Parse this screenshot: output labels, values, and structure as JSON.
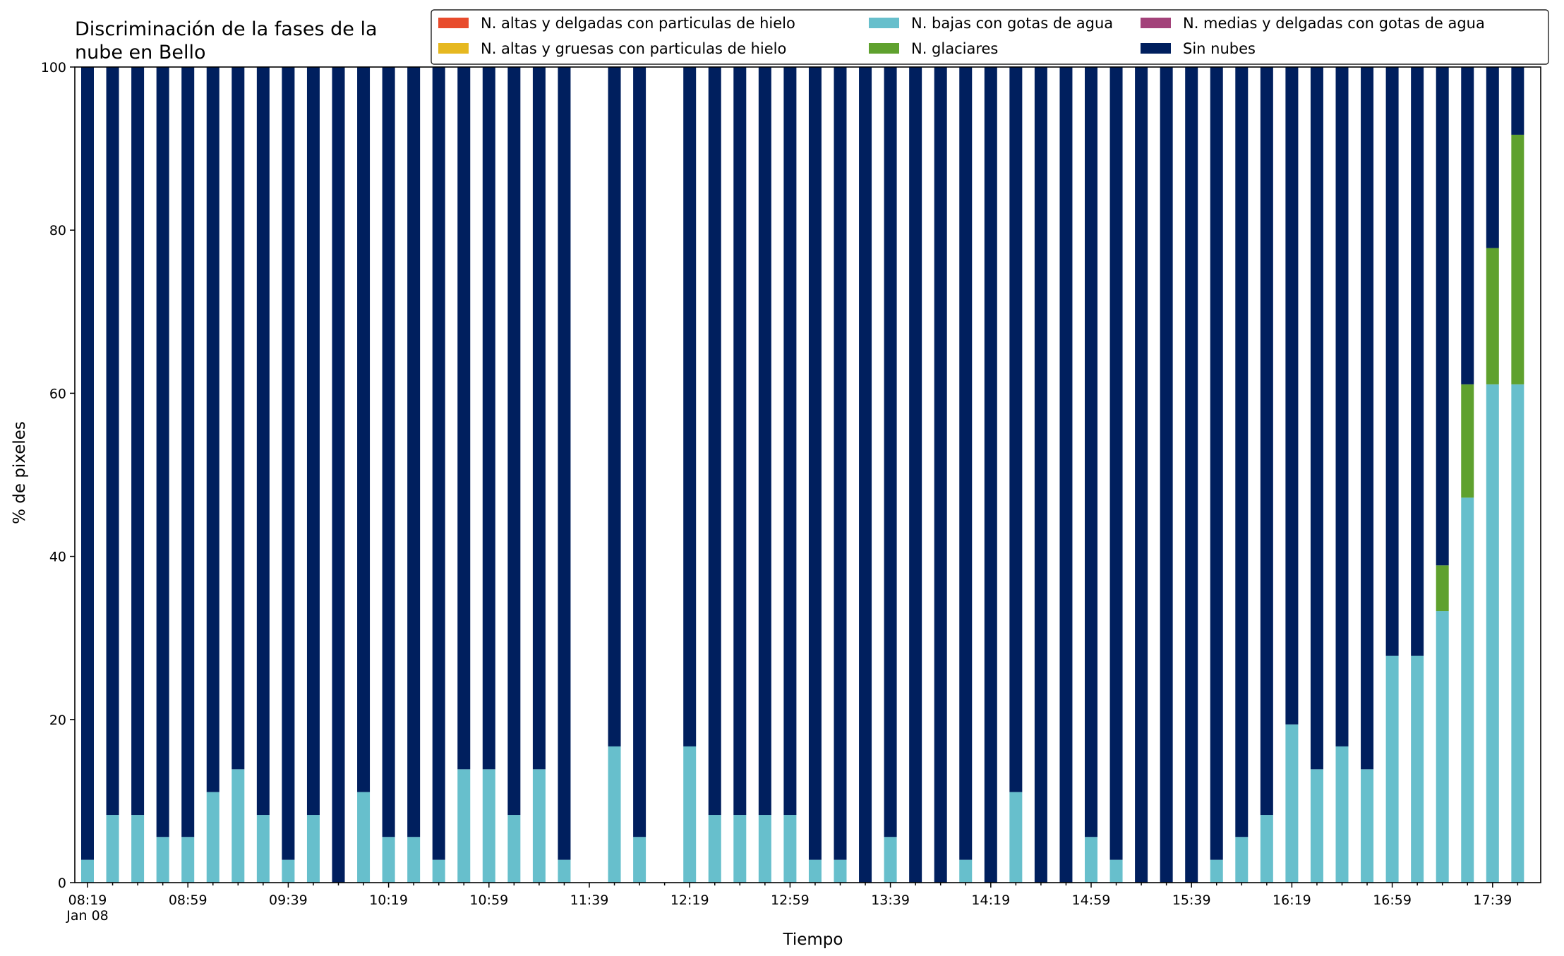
{
  "chart_data": {
    "type": "bar",
    "stacked": true,
    "title": "Discriminación de la fases de la nube en Bello",
    "title_lines": [
      "Discriminación de la fases de la",
      "nube en Bello"
    ],
    "xlabel": "Tiempo",
    "ylabel": "% de pixeles",
    "ylim": [
      0,
      100
    ],
    "yticks": [
      0,
      20,
      40,
      60,
      80,
      100
    ],
    "x_start": "08:19",
    "x_step_minutes": 10,
    "date_label": "Jan 08",
    "xtick_labels": [
      "08:19",
      "08:59",
      "09:39",
      "10:19",
      "10:59",
      "11:39",
      "12:19",
      "12:59",
      "13:39",
      "14:19",
      "14:59",
      "15:39",
      "16:19",
      "16:59",
      "17:39"
    ],
    "legend_position": "top-right",
    "legend_columns": 3,
    "grid": false,
    "categories": [
      "08:19",
      "08:29",
      "08:39",
      "08:49",
      "08:59",
      "09:09",
      "09:19",
      "09:29",
      "09:39",
      "09:49",
      "09:59",
      "10:09",
      "10:19",
      "10:29",
      "10:39",
      "10:49",
      "10:59",
      "11:09",
      "11:19",
      "11:29",
      "11:39",
      "11:49",
      "11:59",
      "12:09",
      "12:19",
      "12:29",
      "12:39",
      "12:49",
      "12:59",
      "13:09",
      "13:19",
      "13:29",
      "13:39",
      "13:49",
      "13:59",
      "14:09",
      "14:19",
      "14:29",
      "14:39",
      "14:49",
      "14:59",
      "15:09",
      "15:19",
      "15:29",
      "15:39",
      "15:49",
      "15:59",
      "16:09",
      "16:19",
      "16:29",
      "16:39",
      "16:49",
      "16:59",
      "17:09",
      "17:19",
      "17:29",
      "17:39",
      "17:49"
    ],
    "present": [
      true,
      true,
      true,
      true,
      true,
      true,
      true,
      true,
      true,
      true,
      true,
      true,
      true,
      true,
      true,
      true,
      true,
      true,
      true,
      true,
      false,
      true,
      true,
      false,
      true,
      true,
      true,
      true,
      true,
      true,
      true,
      true,
      true,
      true,
      true,
      true,
      true,
      true,
      true,
      true,
      true,
      true,
      true,
      true,
      true,
      true,
      true,
      true,
      true,
      true,
      true,
      true,
      true,
      true,
      true,
      true,
      true,
      true
    ],
    "series": [
      {
        "name": "N. altas y delgadas con particulas de hielo",
        "color": "#e84b2c",
        "values": [
          0,
          0,
          0,
          0,
          0,
          0,
          0,
          0,
          0,
          0,
          0,
          0,
          0,
          0,
          0,
          0,
          0,
          0,
          0,
          0,
          0,
          0,
          0,
          0,
          0,
          0,
          0,
          0,
          0,
          0,
          0,
          0,
          0,
          0,
          0,
          0,
          0,
          0,
          0,
          0,
          0,
          0,
          0,
          0,
          0,
          0,
          0,
          0,
          0,
          0,
          0,
          0,
          0,
          0,
          0,
          0,
          0,
          0
        ]
      },
      {
        "name": "N. altas y gruesas con particulas de hielo",
        "color": "#e6b820",
        "values": [
          0,
          0,
          0,
          0,
          0,
          0,
          0,
          0,
          0,
          0,
          0,
          0,
          0,
          0,
          0,
          0,
          0,
          0,
          0,
          0,
          0,
          0,
          0,
          0,
          0,
          0,
          0,
          0,
          0,
          0,
          0,
          0,
          0,
          0,
          0,
          0,
          0,
          0,
          0,
          0,
          0,
          0,
          0,
          0,
          0,
          0,
          0,
          0,
          0,
          0,
          0,
          0,
          0,
          0,
          0,
          0,
          0,
          0
        ]
      },
      {
        "name": "N. bajas con gotas de agua",
        "color": "#67bfcc",
        "values": [
          2.8,
          8.3,
          8.3,
          5.6,
          5.6,
          11.1,
          13.9,
          8.3,
          2.8,
          8.3,
          0,
          11.1,
          5.6,
          5.6,
          2.8,
          13.9,
          13.9,
          8.3,
          13.9,
          2.8,
          0,
          16.7,
          5.6,
          0,
          16.7,
          8.3,
          8.3,
          8.3,
          8.3,
          2.8,
          2.8,
          0,
          5.6,
          0,
          0,
          2.8,
          0,
          11.1,
          0,
          0,
          5.6,
          2.8,
          0,
          0,
          0,
          2.8,
          5.6,
          8.3,
          19.4,
          13.9,
          16.7,
          13.9,
          27.8,
          27.8,
          33.3,
          47.2,
          61.1,
          61.1
        ]
      },
      {
        "name": "N. glaciares",
        "color": "#5fa12e",
        "values": [
          0,
          0,
          0,
          0,
          0,
          0,
          0,
          0,
          0,
          0,
          0,
          0,
          0,
          0,
          0,
          0,
          0,
          0,
          0,
          0,
          0,
          0,
          0,
          0,
          0,
          0,
          0,
          0,
          0,
          0,
          0,
          0,
          0,
          0,
          0,
          0,
          0,
          0,
          0,
          0,
          0,
          0,
          0,
          0,
          0,
          0,
          0,
          0,
          0,
          0,
          0,
          0,
          0,
          0,
          5.6,
          13.9,
          16.7,
          30.6
        ]
      },
      {
        "name": "N. medias y delgadas con gotas de agua",
        "color": "#a3427a",
        "values": [
          0,
          0,
          0,
          0,
          0,
          0,
          0,
          0,
          0,
          0,
          0,
          0,
          0,
          0,
          0,
          0,
          0,
          0,
          0,
          0,
          0,
          0,
          0,
          0,
          0,
          0,
          0,
          0,
          0,
          0,
          0,
          0,
          0,
          0,
          0,
          0,
          0,
          0,
          0,
          0,
          0,
          0,
          0,
          0,
          0,
          0,
          0,
          0,
          0,
          0,
          0,
          0,
          0,
          0,
          0,
          0,
          0,
          0
        ]
      },
      {
        "name": "Sin nubes",
        "color": "#001f5e",
        "values": [
          97.2,
          91.7,
          91.7,
          94.4,
          94.4,
          88.9,
          86.1,
          91.7,
          97.2,
          91.7,
          100,
          88.9,
          94.4,
          94.4,
          97.2,
          86.1,
          86.1,
          91.7,
          86.1,
          97.2,
          0,
          83.3,
          94.4,
          0,
          83.3,
          91.7,
          91.7,
          91.7,
          91.7,
          97.2,
          97.2,
          100,
          94.4,
          100,
          100,
          97.2,
          100,
          88.9,
          100,
          100,
          94.4,
          97.2,
          100,
          100,
          100,
          97.2,
          94.4,
          91.7,
          80.6,
          86.1,
          83.3,
          86.1,
          72.2,
          72.2,
          61.1,
          38.9,
          22.2,
          8.3
        ]
      }
    ]
  }
}
